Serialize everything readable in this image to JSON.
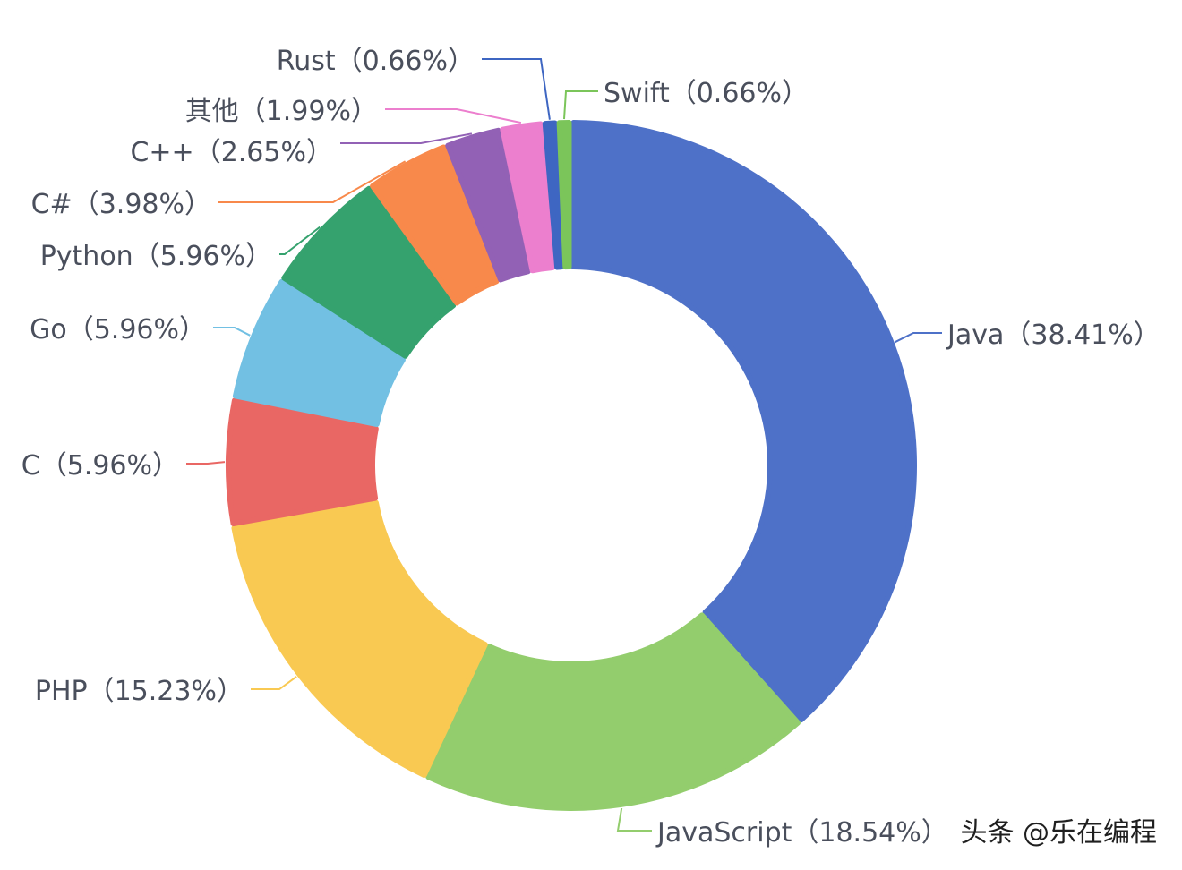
{
  "chart_data": {
    "type": "pie",
    "variant": "donut",
    "unit": "%",
    "series": [
      {
        "name": "Java",
        "value": 38.41,
        "label": "Java（38.41%）",
        "color": "#4e71c8"
      },
      {
        "name": "JavaScript",
        "value": 18.54,
        "label": "JavaScript（18.54%）",
        "color": "#93cd6d"
      },
      {
        "name": "PHP",
        "value": 15.23,
        "label": "PHP（15.23%）",
        "color": "#f9c952"
      },
      {
        "name": "C",
        "value": 5.96,
        "label": "C（5.96%）",
        "color": "#e96764"
      },
      {
        "name": "Go",
        "value": 5.96,
        "label": "Go（5.96%）",
        "color": "#72c0e3"
      },
      {
        "name": "Python",
        "value": 5.96,
        "label": "Python（5.96%）",
        "color": "#35a26e"
      },
      {
        "name": "C#",
        "value": 3.98,
        "label": "C#（3.98%）",
        "color": "#f8894b"
      },
      {
        "name": "C++",
        "value": 2.65,
        "label": "C++（2.65%）",
        "color": "#9261b5"
      },
      {
        "name": "其他",
        "value": 1.99,
        "label": "其他（1.99%）",
        "color": "#ec7fce"
      },
      {
        "name": "Rust",
        "value": 0.66,
        "label": "Rust（0.66%）",
        "color": "#3e66c2"
      },
      {
        "name": "Swift",
        "value": 0.66,
        "label": "Swift（0.66%）",
        "color": "#7bc55a"
      }
    ]
  },
  "watermark": "头条 @乐在编程"
}
